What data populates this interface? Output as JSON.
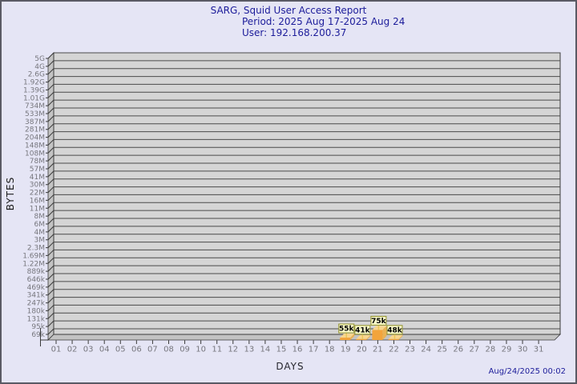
{
  "header": {
    "title": "SARG, Squid User Access Report",
    "period": "Period: 2025 Aug 17-2025 Aug 24",
    "user": "User: 192.168.200.37"
  },
  "footer": {
    "timestamp": "Aug/24/2025 00:02"
  },
  "chart_data": {
    "type": "bar",
    "title": "SARG, Squid User Access Report",
    "subtitle_period": "Period: 2025 Aug 17-2025 Aug 24",
    "subtitle_user": "User: 192.168.200.37",
    "xlabel": "DAYS",
    "ylabel": "BYTES",
    "y_scale": "log",
    "grid": true,
    "legend": "none",
    "y_tick_labels": [
      "5G",
      "4G",
      "2.6G",
      "1.92G",
      "1.39G",
      "1.01G",
      "734M",
      "533M",
      "387M",
      "281M",
      "204M",
      "148M",
      "108M",
      "78M",
      "57M",
      "41M",
      "30M",
      "22M",
      "16M",
      "11M",
      "8M",
      "6M",
      "4M",
      "3M",
      "2.3M",
      "1.69M",
      "1.22M",
      "889k",
      "646k",
      "469k",
      "341k",
      "247k",
      "180k",
      "131k",
      "95k",
      "69k"
    ],
    "x_tick_labels": [
      "01",
      "02",
      "03",
      "04",
      "05",
      "06",
      "07",
      "08",
      "09",
      "10",
      "11",
      "12",
      "13",
      "14",
      "15",
      "16",
      "17",
      "18",
      "19",
      "20",
      "21",
      "22",
      "23",
      "24",
      "25",
      "26",
      "27",
      "28",
      "29",
      "30",
      "31"
    ],
    "y_axis": {
      "min_value": 50000,
      "tick_ratio": 1.374
    },
    "points": [
      {
        "day": 19,
        "value_label": "55k",
        "bytes": 55000
      },
      {
        "day": 20,
        "value_label": "41k",
        "bytes": 41000
      },
      {
        "day": 21,
        "value_label": "75k",
        "bytes": 75000
      },
      {
        "day": 22,
        "value_label": "48k",
        "bytes": 48000
      }
    ],
    "colors": {
      "page_bg": "#e5e5f5",
      "title_text": "#1c1c9a",
      "plot_bg": "#d5d5d5",
      "wall": "#c3c3c3",
      "grid_line": "#4a4a4a",
      "edge": "#3a3a3a",
      "tick_text": "#77777e",
      "bar_front": "#f2a43c",
      "bar_top": "#f8d68e",
      "bar_side": "#eab254",
      "label_box_bg": "#fafac8",
      "label_box_border": "#90902c",
      "label_text": "#000000",
      "connector": "#e9c75a"
    }
  }
}
